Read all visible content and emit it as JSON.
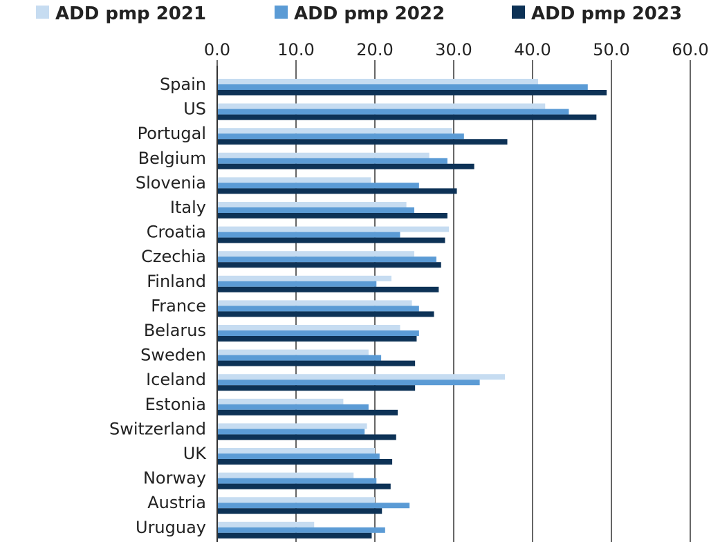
{
  "chart_data": {
    "type": "bar",
    "orientation": "horizontal",
    "title": "",
    "xlabel": "",
    "ylabel": "",
    "xlim": [
      0,
      60
    ],
    "x_ticks": [
      "0.0",
      "10.0",
      "20.0",
      "30.0",
      "40.0",
      "50.0",
      "60.0"
    ],
    "grid": true,
    "legend_position": "top",
    "categories": [
      "Spain",
      "US",
      "Portugal",
      "Belgium",
      "Slovenia",
      "Italy",
      "Croatia",
      "Czechia",
      "Finland",
      "France",
      "Belarus",
      "Sweden",
      "Iceland",
      "Estonia",
      "Switzerland",
      "UK",
      "Norway",
      "Austria",
      "Uruguay"
    ],
    "series": [
      {
        "name": "ADD pmp 2021",
        "color": "#c6dcf1",
        "values": [
          40.7,
          41.6,
          29.8,
          26.9,
          19.5,
          24.0,
          29.4,
          25.0,
          22.1,
          24.7,
          23.2,
          19.2,
          36.5,
          16.0,
          19.0,
          20.0,
          17.3,
          20.0,
          12.3
        ]
      },
      {
        "name": "ADD pmp 2022",
        "color": "#5b9bd5",
        "values": [
          47.0,
          44.6,
          31.3,
          29.2,
          25.6,
          25.0,
          23.2,
          27.8,
          20.2,
          25.6,
          25.6,
          20.8,
          33.3,
          19.2,
          18.7,
          20.6,
          20.2,
          24.4,
          21.3
        ]
      },
      {
        "name": "ADD pmp 2023",
        "color": "#0d3256",
        "values": [
          49.4,
          48.1,
          36.8,
          32.6,
          30.4,
          29.2,
          28.9,
          28.4,
          28.1,
          27.5,
          25.3,
          25.1,
          25.1,
          22.9,
          22.7,
          22.2,
          22.0,
          20.9,
          19.6
        ]
      }
    ]
  }
}
